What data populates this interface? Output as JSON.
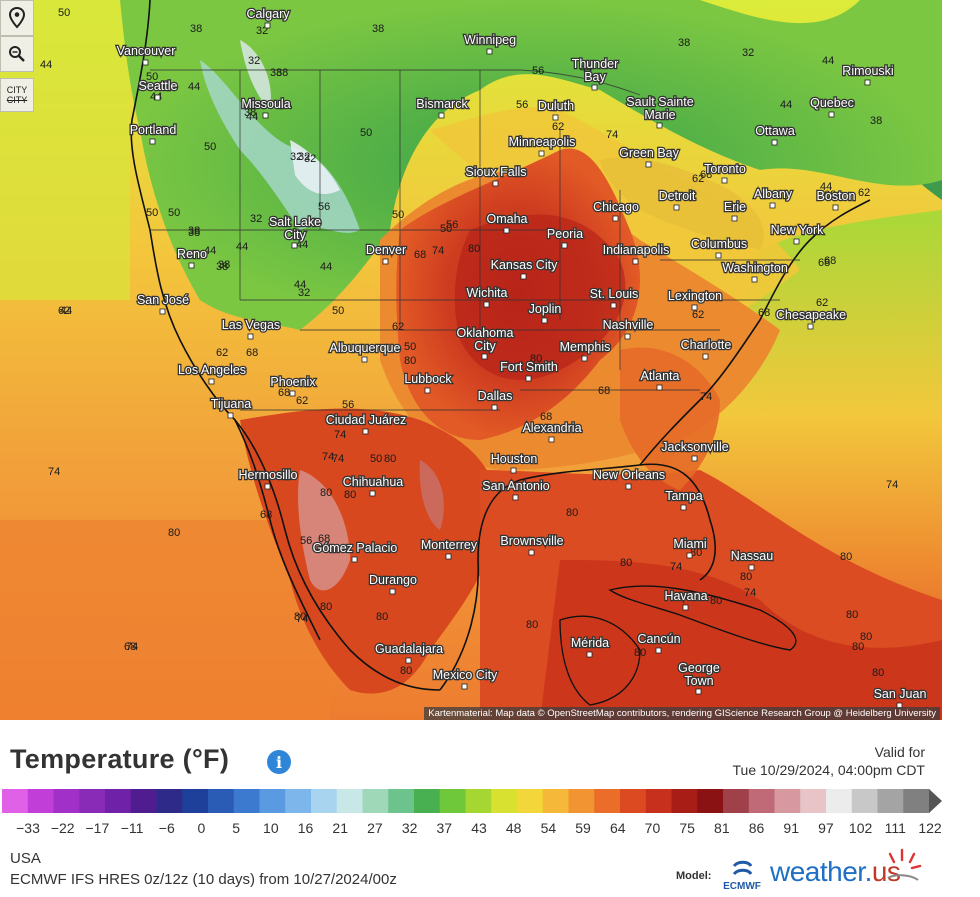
{
  "map": {
    "attribution": "Kartenmaterial: Map data © OpenStreetMap contributors, rendering GIScience Research Group @ Heidelberg University",
    "tools": [
      {
        "name": "location-pin-icon"
      },
      {
        "name": "zoom-icon"
      },
      {
        "name": "city-toggle",
        "label_top": "CITY",
        "label_bottom": "CITY"
      }
    ],
    "cities": [
      {
        "name": "Calgary"
      },
      {
        "name": "Winnipeg"
      },
      {
        "name": "Vancouver"
      },
      {
        "name": "Seattle"
      },
      {
        "name": "Thunder Bay"
      },
      {
        "name": "Missoula"
      },
      {
        "name": "Bismarck"
      },
      {
        "name": "Duluth"
      },
      {
        "name": "Sault Sainte Marie"
      },
      {
        "name": "Rimouski"
      },
      {
        "name": "Quebec"
      },
      {
        "name": "Portland"
      },
      {
        "name": "Ottawa"
      },
      {
        "name": "Minneapolis"
      },
      {
        "name": "Green Bay"
      },
      {
        "name": "Toronto"
      },
      {
        "name": "Sioux Falls"
      },
      {
        "name": "Chicago"
      },
      {
        "name": "Detroit"
      },
      {
        "name": "Albany"
      },
      {
        "name": "Boston"
      },
      {
        "name": "Erie"
      },
      {
        "name": "Salt Lake City"
      },
      {
        "name": "Omaha"
      },
      {
        "name": "Peoria"
      },
      {
        "name": "New York"
      },
      {
        "name": "Columbus"
      },
      {
        "name": "Reno"
      },
      {
        "name": "Denver"
      },
      {
        "name": "Indianapolis"
      },
      {
        "name": "Kansas City"
      },
      {
        "name": "Washington"
      },
      {
        "name": "Wichita"
      },
      {
        "name": "St. Louis"
      },
      {
        "name": "Lexington"
      },
      {
        "name": "San José"
      },
      {
        "name": "Joplin"
      },
      {
        "name": "Chesapeake"
      },
      {
        "name": "Las Vegas"
      },
      {
        "name": "Oklahoma City"
      },
      {
        "name": "Nashville"
      },
      {
        "name": "Albuquerque"
      },
      {
        "name": "Memphis"
      },
      {
        "name": "Charlotte"
      },
      {
        "name": "Los Angeles"
      },
      {
        "name": "Fort Smith"
      },
      {
        "name": "Lubbock"
      },
      {
        "name": "Atlanta"
      },
      {
        "name": "Phoenix"
      },
      {
        "name": "Tijuana"
      },
      {
        "name": "Dallas"
      },
      {
        "name": "Ciudad Juárez"
      },
      {
        "name": "Alexandria"
      },
      {
        "name": "Jacksonville"
      },
      {
        "name": "Hermosillo"
      },
      {
        "name": "Houston"
      },
      {
        "name": "Chihuahua"
      },
      {
        "name": "New Orleans"
      },
      {
        "name": "San Antonio"
      },
      {
        "name": "Tampa"
      },
      {
        "name": "Gómez Palacio"
      },
      {
        "name": "Monterrey"
      },
      {
        "name": "Brownsville"
      },
      {
        "name": "Miami"
      },
      {
        "name": "Nassau"
      },
      {
        "name": "Durango"
      },
      {
        "name": "Havana"
      },
      {
        "name": "Guadalajara"
      },
      {
        "name": "Mérida"
      },
      {
        "name": "Cancún"
      },
      {
        "name": "George Town"
      },
      {
        "name": "Mexico City"
      },
      {
        "name": "San Juan"
      }
    ],
    "isotherm_labels": [
      "50",
      "38",
      "32",
      "38",
      "44",
      "38",
      "32",
      "44",
      "50",
      "44",
      "32",
      "50",
      "50",
      "56",
      "44",
      "38",
      "32",
      "44",
      "44",
      "38",
      "44",
      "62",
      "38",
      "50",
      "74",
      "56",
      "38",
      "62",
      "50",
      "38",
      "44",
      "56",
      "68",
      "32",
      "32",
      "38",
      "32",
      "44",
      "44",
      "38",
      "38",
      "50",
      "56",
      "74",
      "80",
      "50",
      "44",
      "68",
      "62",
      "44",
      "68",
      "50",
      "32",
      "44",
      "62",
      "50",
      "62",
      "62",
      "44",
      "68",
      "56",
      "74",
      "62",
      "50",
      "68",
      "62",
      "68",
      "62",
      "68",
      "68",
      "74",
      "68",
      "80",
      "80",
      "68",
      "62",
      "74",
      "68",
      "56",
      "68",
      "80",
      "74",
      "74",
      "68",
      "80",
      "80",
      "80",
      "80",
      "80",
      "80",
      "74",
      "80",
      "80",
      "80",
      "74",
      "80",
      "80",
      "74",
      "74",
      "80",
      "80",
      "80",
      "80",
      "80",
      "80",
      "80",
      "74",
      "80"
    ]
  },
  "legend": {
    "title": "Temperature (°F)",
    "info_glyph": "i",
    "valid_label": "Valid for",
    "valid_time": "Tue 10/29/2024, 04:00pm CDT",
    "ticks": [
      "-33",
      "-22",
      "-17",
      "-11",
      "-6",
      "0",
      "5",
      "10",
      "16",
      "21",
      "27",
      "32",
      "37",
      "43",
      "48",
      "54",
      "59",
      "64",
      "70",
      "75",
      "81",
      "86",
      "91",
      "97",
      "102",
      "111",
      "122"
    ],
    "colors": [
      "#e060e8",
      "#c23ed8",
      "#a030c8",
      "#8a2bb8",
      "#6f22a8",
      "#4f1d90",
      "#2e2a8a",
      "#1e3f9a",
      "#2a5cb5",
      "#3c7ad0",
      "#5a9ae0",
      "#7db6ea",
      "#a9d4f0",
      "#c8e8e8",
      "#9ed8b8",
      "#6cc48c",
      "#48b050",
      "#6ec83a",
      "#a6d632",
      "#d8e030",
      "#f2d63a",
      "#f6b838",
      "#f29432",
      "#ea6e2a",
      "#dc4a22",
      "#c7301c",
      "#a81e16",
      "#8a1212",
      "#a04048",
      "#c06a78",
      "#d898a0",
      "#e8c4c8",
      "#ececec",
      "#c8c8c8",
      "#a4a4a4",
      "#808080"
    ]
  },
  "footer": {
    "region": "USA",
    "model_run": "ECMWF IFS HRES 0z/12z (10 days) from 10/27/2024/00z",
    "model_label": "Model:",
    "ecmwf_text": "ECMWF",
    "brand_name": "weather",
    "brand_dot": ".",
    "brand_tld": "us"
  }
}
